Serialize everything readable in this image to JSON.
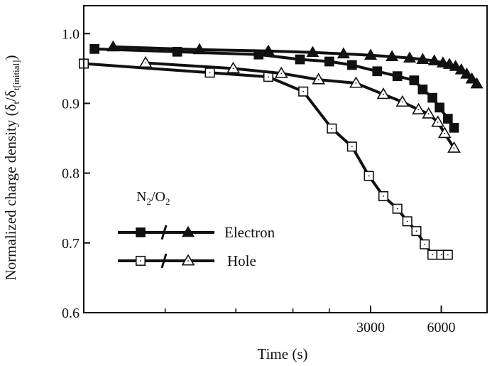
{
  "chart_data": {
    "type": "line",
    "title": "",
    "xlabel": "Time (s)",
    "ylabel": "Normalized charge density (δ",
    "ylabel_sub1": "t",
    "ylabel_mid": "/δ",
    "ylabel_sub2": "t[initial]",
    "ylabel_end": ")",
    "xscale": "log",
    "xlim": [
      180,
      9400
    ],
    "ylim": [
      0.6,
      1.04
    ],
    "x_ticks": [
      3000,
      6000
    ],
    "x_tick_labels": [
      "3000",
      "6000"
    ],
    "x_minor_ticks": [
      400,
      800,
      1400,
      2000
    ],
    "y_ticks": [
      0.6,
      0.7,
      0.8,
      0.9,
      1.0
    ],
    "y_tick_labels": [
      "0.6",
      "0.7",
      "0.8",
      "0.9",
      "1.0"
    ],
    "grid": false,
    "legend": {
      "position": "lower-left",
      "title": "N",
      "title_sub1": "2",
      "title_mid": "/O",
      "title_sub2": "2",
      "entries": [
        {
          "label": "Electron",
          "marker_n2": "filled-square",
          "marker_o2": "filled-triangle"
        },
        {
          "label": "Hole",
          "marker_n2": "open-square",
          "marker_o2": "open-triangle"
        }
      ]
    },
    "series": [
      {
        "carrier": "Electron",
        "atmosphere": "N2",
        "marker": "filled-square",
        "x": [
          200,
          450,
          1000,
          1500,
          2000,
          2500,
          3200,
          3900,
          4600,
          5000,
          5500,
          5900,
          6400,
          6800
        ],
        "y": [
          0.978,
          0.974,
          0.97,
          0.963,
          0.96,
          0.955,
          0.946,
          0.939,
          0.933,
          0.92,
          0.908,
          0.894,
          0.878,
          0.865
        ]
      },
      {
        "carrier": "Electron",
        "atmosphere": "O2",
        "marker": "filled-triangle",
        "x": [
          240,
          560,
          1100,
          1700,
          2300,
          3000,
          3700,
          4400,
          5000,
          5600,
          6100,
          6500,
          6900,
          7300,
          7700,
          8100,
          8500
        ],
        "y": [
          0.981,
          0.977,
          0.975,
          0.973,
          0.971,
          0.969,
          0.967,
          0.965,
          0.963,
          0.961,
          0.958,
          0.956,
          0.953,
          0.948,
          0.942,
          0.935,
          0.928
        ]
      },
      {
        "carrier": "Hole",
        "atmosphere": "N2",
        "marker": "open-square",
        "x": [
          180,
          620,
          1100,
          1550,
          2050,
          2500,
          2950,
          3400,
          3900,
          4300,
          4700,
          5100,
          5500,
          6000,
          6400
        ],
        "y": [
          0.957,
          0.944,
          0.938,
          0.917,
          0.864,
          0.838,
          0.796,
          0.767,
          0.749,
          0.731,
          0.717,
          0.698,
          0.683,
          0.683,
          0.683
        ]
      },
      {
        "carrier": "Hole",
        "atmosphere": "O2",
        "marker": "open-triangle",
        "x": [
          330,
          780,
          1250,
          1800,
          2600,
          3400,
          4100,
          4800,
          5300,
          5800,
          6200,
          6800
        ],
        "y": [
          0.958,
          0.95,
          0.943,
          0.934,
          0.929,
          0.913,
          0.902,
          0.891,
          0.885,
          0.873,
          0.857,
          0.836
        ]
      }
    ]
  }
}
